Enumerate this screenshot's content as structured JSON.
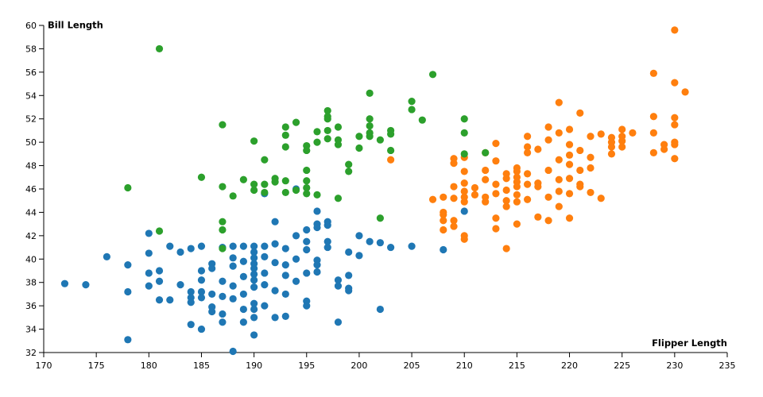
{
  "chart_data": {
    "type": "scatter",
    "x_label": "Flipper Length",
    "y_label": "Bill Length",
    "xlim": [
      170,
      235
    ],
    "xticks": [
      170,
      175,
      180,
      185,
      190,
      195,
      200,
      205,
      210,
      215,
      220,
      225,
      230,
      235
    ],
    "ylim": [
      32,
      60
    ],
    "yticks": [
      32,
      34,
      36,
      38,
      40,
      42,
      44,
      46,
      48,
      50,
      52,
      54,
      56,
      58,
      60
    ],
    "series": [
      {
        "color": "#1f77b4",
        "x": [
          172,
          174,
          176,
          178,
          178,
          178,
          180,
          180,
          180,
          180,
          181,
          181,
          181,
          182,
          182,
          183,
          183,
          184,
          184,
          184,
          184,
          184,
          185,
          185,
          185,
          185,
          185,
          185,
          186,
          186,
          186,
          186,
          186,
          187,
          187,
          187,
          187,
          187,
          188,
          188,
          188,
          188,
          188,
          188,
          189,
          189,
          189,
          189,
          189,
          189,
          190,
          190,
          190,
          190,
          190,
          190,
          190,
          190,
          190,
          190,
          190,
          190,
          191,
          191,
          191,
          191,
          191,
          191,
          192,
          192,
          192,
          192,
          192,
          193,
          193,
          193,
          193,
          193,
          194,
          194,
          194,
          194,
          195,
          195,
          195,
          195,
          195,
          195,
          196,
          196,
          196,
          196,
          196,
          196,
          197,
          197,
          197,
          197,
          198,
          198,
          198,
          199,
          199,
          199,
          199,
          200,
          200,
          201,
          202,
          202,
          203,
          205,
          208,
          210
        ],
        "values": [
          37.9,
          37.8,
          40.2,
          39.5,
          37.2,
          33.1,
          42.2,
          40.5,
          38.8,
          37.7,
          39.0,
          38.1,
          36.5,
          41.1,
          36.5,
          40.6,
          37.8,
          40.9,
          37.2,
          36.7,
          36.3,
          34.4,
          41.1,
          39.0,
          38.2,
          37.2,
          36.7,
          34.0,
          39.6,
          39.2,
          37.0,
          35.9,
          35.5,
          41.0,
          38.1,
          36.8,
          35.3,
          34.6,
          41.1,
          40.1,
          39.4,
          37.7,
          36.6,
          32.1,
          41.1,
          39.8,
          38.5,
          37.0,
          35.7,
          34.6,
          41.1,
          40.6,
          40.1,
          39.6,
          39.2,
          38.7,
          38.2,
          37.6,
          36.2,
          35.7,
          35.0,
          33.5,
          45.6,
          41.1,
          40.2,
          38.8,
          37.8,
          36.0,
          43.2,
          41.3,
          39.7,
          37.3,
          35.0,
          40.9,
          39.5,
          38.6,
          37.0,
          35.1,
          46.0,
          42.0,
          40.0,
          38.1,
          42.5,
          41.5,
          40.8,
          38.8,
          36.4,
          36.0,
          44.1,
          43.0,
          42.7,
          39.9,
          39.5,
          38.9,
          43.2,
          42.9,
          41.5,
          41.0,
          38.2,
          37.7,
          34.6,
          40.6,
          38.6,
          37.5,
          37.3,
          42.0,
          40.3,
          41.5,
          41.4,
          35.7,
          41.0,
          41.1,
          40.8,
          44.1
        ]
      },
      {
        "color": "#ff7f0e",
        "x": [
          203,
          207,
          208,
          208,
          208,
          208,
          208,
          209,
          209,
          209,
          209,
          209,
          209,
          210,
          210,
          210,
          210,
          210,
          210,
          210,
          210,
          211,
          211,
          212,
          212,
          212,
          212,
          212,
          213,
          213,
          213,
          213,
          213,
          213,
          214,
          214,
          214,
          214,
          214,
          214,
          215,
          215,
          215,
          215,
          215,
          215,
          215,
          215,
          216,
          216,
          216,
          216,
          216,
          216,
          217,
          217,
          217,
          217,
          218,
          218,
          218,
          218,
          218,
          219,
          219,
          219,
          219,
          219,
          219,
          220,
          220,
          220,
          220,
          220,
          220,
          220,
          221,
          221,
          221,
          221,
          221,
          222,
          222,
          222,
          222,
          223,
          223,
          224,
          224,
          224,
          224,
          225,
          225,
          225,
          225,
          226,
          228,
          228,
          228,
          228,
          229,
          229,
          230,
          230,
          230,
          230,
          230,
          230,
          230,
          231
        ],
        "values": [
          48.5,
          45.1,
          45.3,
          44.0,
          43.8,
          43.3,
          42.5,
          48.6,
          48.2,
          46.2,
          45.2,
          43.3,
          42.8,
          48.7,
          47.5,
          46.5,
          45.8,
          45.3,
          44.9,
          42.0,
          41.7,
          46.1,
          45.5,
          49.1,
          47.6,
          46.8,
          45.3,
          44.9,
          49.9,
          48.4,
          46.4,
          45.6,
          43.5,
          42.6,
          47.3,
          46.9,
          45.9,
          45.0,
          44.5,
          40.9,
          47.8,
          47.5,
          47.0,
          46.6,
          46.2,
          45.5,
          44.9,
          43.0,
          50.5,
          49.6,
          49.1,
          47.3,
          46.4,
          45.1,
          49.4,
          46.5,
          46.2,
          43.6,
          51.3,
          50.2,
          47.6,
          45.3,
          43.3,
          53.4,
          50.8,
          48.5,
          46.8,
          45.8,
          44.5,
          51.1,
          49.8,
          48.9,
          48.1,
          46.9,
          45.6,
          43.5,
          52.5,
          49.3,
          47.6,
          46.4,
          46.2,
          50.5,
          48.7,
          47.8,
          45.7,
          50.7,
          45.2,
          50.4,
          50.0,
          49.6,
          49.0,
          51.1,
          50.5,
          50.1,
          49.6,
          50.8,
          55.9,
          52.2,
          50.8,
          49.1,
          49.8,
          49.4,
          59.6,
          55.1,
          52.1,
          51.5,
          50.0,
          49.8,
          48.6,
          54.3
        ]
      },
      {
        "color": "#2ca02c",
        "x": [
          178,
          181,
          181,
          185,
          187,
          187,
          187,
          187,
          187,
          188,
          189,
          190,
          190,
          190,
          191,
          191,
          191,
          192,
          192,
          193,
          193,
          193,
          193,
          193,
          194,
          194,
          195,
          195,
          195,
          195,
          195,
          195,
          196,
          196,
          196,
          197,
          197,
          197,
          197,
          197,
          198,
          198,
          198,
          198,
          199,
          199,
          200,
          200,
          201,
          201,
          201,
          201,
          201,
          202,
          202,
          203,
          203,
          203,
          205,
          205,
          206,
          207,
          210,
          210,
          210,
          212
        ],
        "values": [
          46.1,
          58.0,
          42.4,
          47.0,
          51.5,
          46.2,
          43.2,
          42.5,
          40.9,
          45.4,
          46.8,
          50.1,
          46.4,
          45.9,
          48.5,
          46.4,
          45.7,
          46.9,
          46.6,
          51.3,
          50.6,
          49.6,
          46.7,
          45.7,
          51.7,
          45.9,
          49.7,
          49.3,
          47.6,
          46.7,
          46.1,
          45.6,
          50.9,
          50.0,
          45.5,
          52.7,
          52.2,
          52.0,
          51.0,
          50.3,
          51.3,
          50.2,
          49.8,
          45.2,
          48.1,
          47.5,
          50.5,
          49.5,
          54.2,
          52.0,
          51.4,
          50.8,
          50.5,
          50.2,
          43.5,
          51.0,
          50.7,
          49.3,
          53.5,
          52.8,
          51.9,
          55.8,
          52.0,
          50.8,
          49.0,
          49.1
        ]
      }
    ]
  }
}
